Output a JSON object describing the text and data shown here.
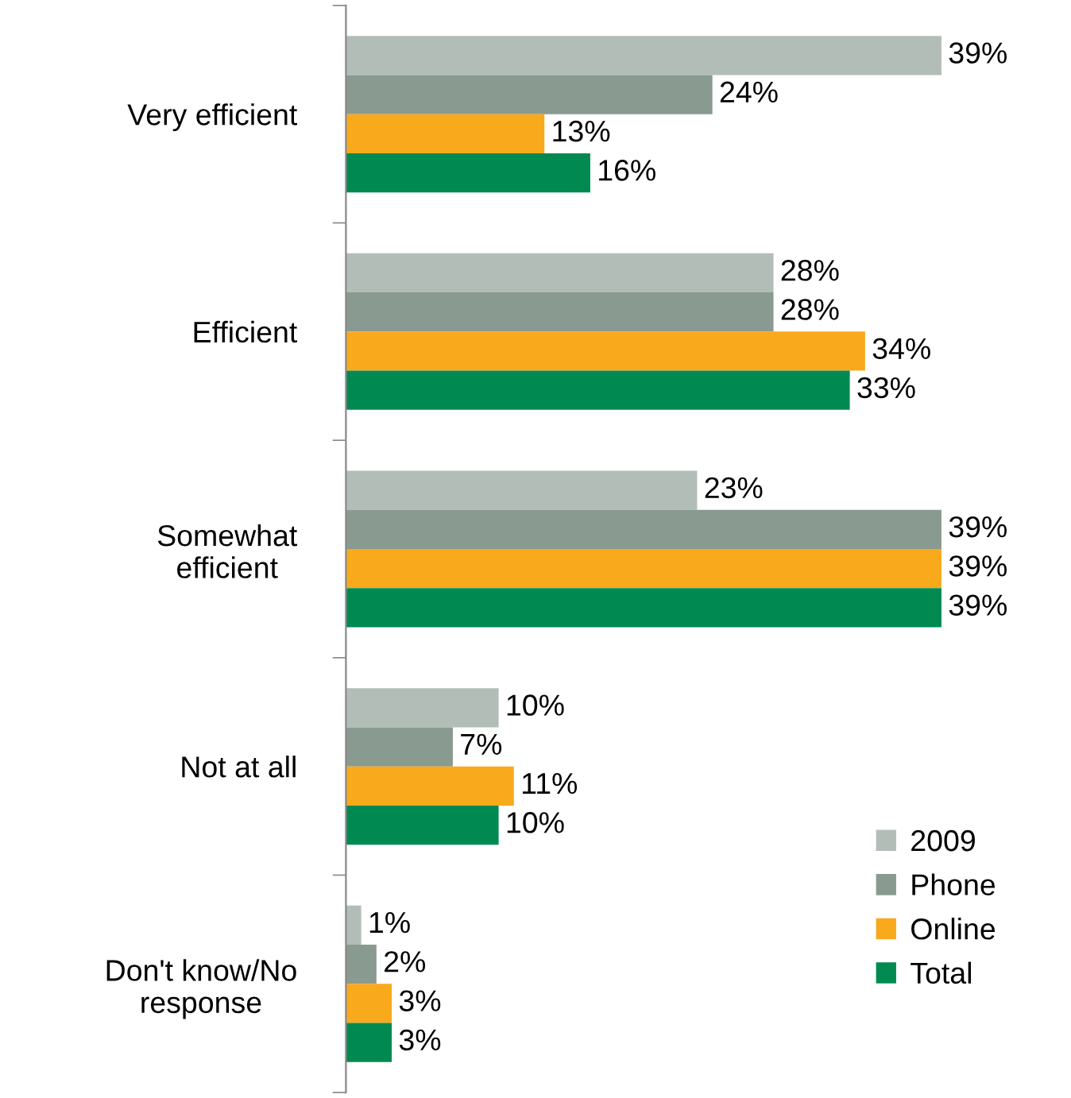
{
  "chart_data": {
    "type": "bar",
    "orientation": "horizontal",
    "categories": [
      "Very efficient",
      "Efficient",
      "Somewhat\nefficient",
      "Not at all",
      "Don't know/No\nresponse"
    ],
    "series": [
      {
        "name": "2009",
        "color": "#b3bdb7",
        "values": [
          39,
          28,
          23,
          10,
          1
        ],
        "value_labels": [
          "39%",
          "28%",
          "23%",
          "10%",
          "1%"
        ]
      },
      {
        "name": "Phone",
        "color": "#899a90",
        "values": [
          24,
          28,
          39,
          7,
          2
        ],
        "value_labels": [
          "24%",
          "28%",
          "39%",
          "7%",
          "2%"
        ]
      },
      {
        "name": "Online",
        "color": "#f9a91c",
        "values": [
          13,
          34,
          39,
          11,
          3
        ],
        "value_labels": [
          "13%",
          "34%",
          "39%",
          "11%",
          "3%"
        ]
      },
      {
        "name": "Total",
        "color": "#008a52",
        "values": [
          16,
          33,
          39,
          10,
          3
        ],
        "value_labels": [
          "16%",
          "33%",
          "39%",
          "10%",
          "3%"
        ]
      }
    ],
    "legend": "bottom right",
    "grid": false
  }
}
